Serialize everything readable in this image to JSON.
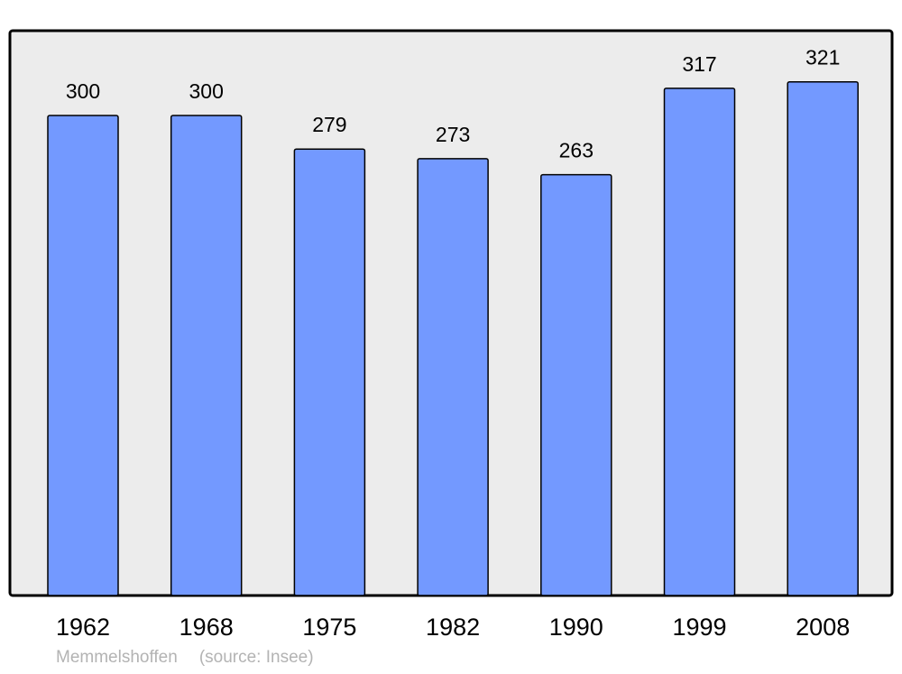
{
  "chart_data": {
    "type": "bar",
    "categories": [
      "1962",
      "1968",
      "1975",
      "1982",
      "1990",
      "1999",
      "2008"
    ],
    "values": [
      300,
      300,
      279,
      273,
      263,
      317,
      321
    ],
    "title": "",
    "xlabel": "",
    "ylabel": "",
    "ylim": [
      0,
      353
    ],
    "grid": false,
    "data_labels": true,
    "colors": {
      "bar": "#7399ff",
      "plot_background": "#ececec",
      "border": "#000000",
      "footer_text": "#b3b3b3"
    }
  },
  "footer": {
    "place": "Memmelshoffen",
    "source": "(source: Insee)"
  }
}
